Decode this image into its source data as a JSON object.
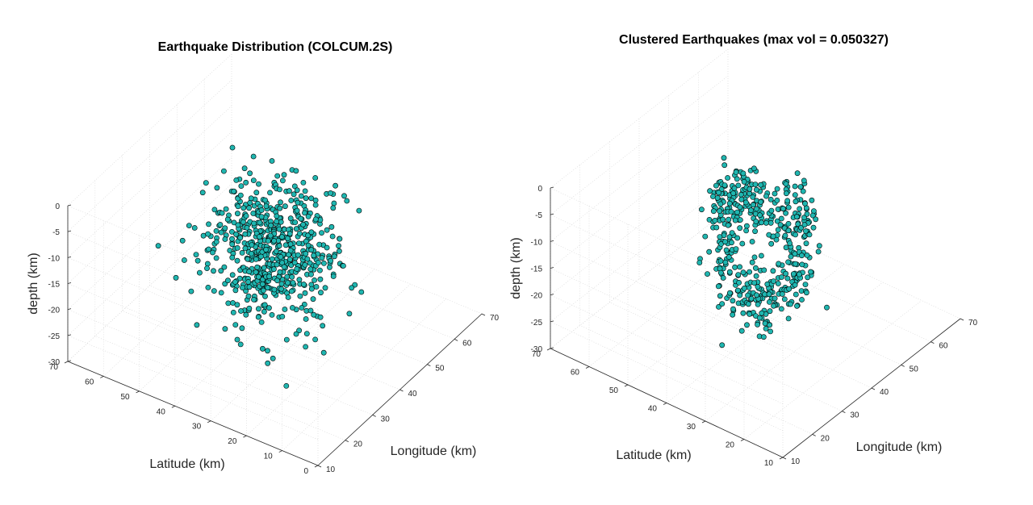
{
  "chart_data": [
    {
      "type": "scatter",
      "subtype": "scatter3d",
      "title": "Earthquake Distribution (COLCUM.2S)",
      "xlabel": "Longitude (km)",
      "ylabel": "Latitude (km)",
      "zlabel": "depth (km)",
      "xlim": [
        10,
        70
      ],
      "ylim": [
        0,
        70
      ],
      "zlim": [
        -30,
        0
      ],
      "xticks": [
        "10",
        "20",
        "30",
        "40",
        "50",
        "60",
        "70"
      ],
      "yticks": [
        "0",
        "10",
        "20",
        "30",
        "40",
        "50",
        "60",
        "70"
      ],
      "zticks": [
        "0",
        "-5",
        "-10",
        "-15",
        "-20",
        "-25",
        "-30"
      ],
      "grid": true,
      "marker_color": "#1fb6b0",
      "marker_edge": "#000000",
      "point_count": 620
    },
    {
      "type": "scatter",
      "subtype": "scatter3d",
      "title": "Clustered Earthquakes (max vol = 0.050327)",
      "xlabel": "Longitude (km)",
      "ylabel": "Latitude (km)",
      "zlabel": "depth (km)",
      "xlim": [
        10,
        70
      ],
      "ylim": [
        10,
        70
      ],
      "zlim": [
        -30,
        0
      ],
      "xticks": [
        "10",
        "20",
        "30",
        "40",
        "50",
        "60",
        "70"
      ],
      "yticks": [
        "10",
        "20",
        "30",
        "40",
        "50",
        "60",
        "70"
      ],
      "zticks": [
        "0",
        "-5",
        "-10",
        "-15",
        "-20",
        "-25",
        "-30"
      ],
      "grid": true,
      "marker_color": "#1fb6b0",
      "marker_edge": "#000000",
      "point_count": 480
    }
  ]
}
